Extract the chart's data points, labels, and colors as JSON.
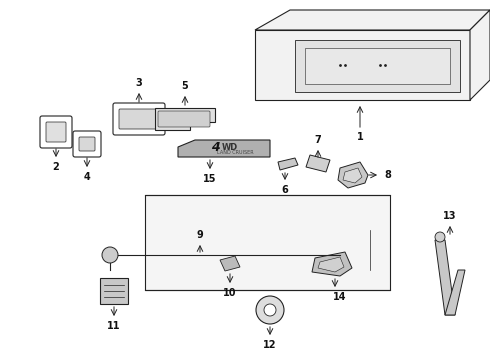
{
  "bg_color": "#ffffff",
  "ec": "#222222",
  "lw": 0.8
}
